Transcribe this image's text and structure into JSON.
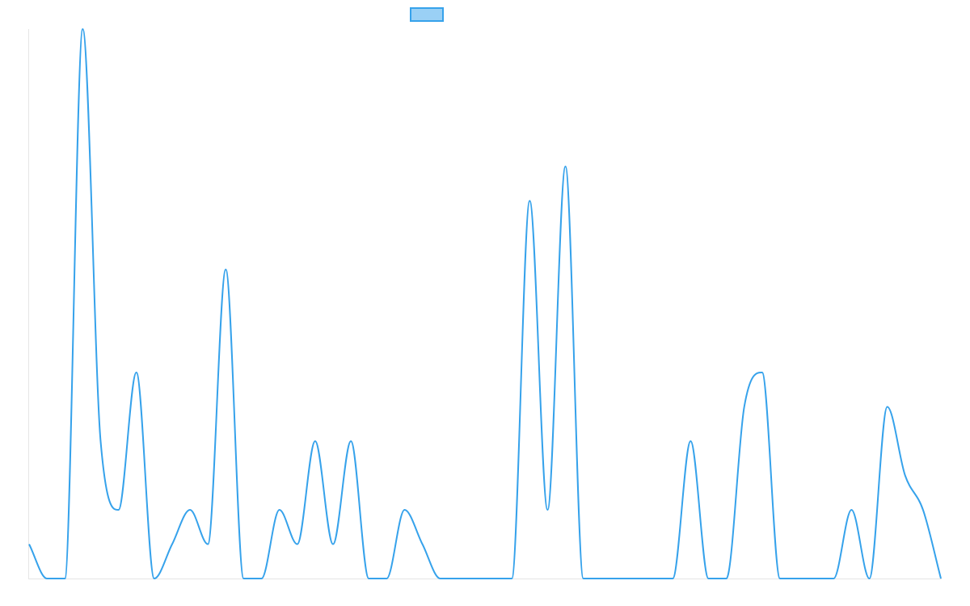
{
  "chart_data": {
    "type": "line",
    "title": "",
    "xlabel": "",
    "ylabel": "",
    "legend": {
      "position": "top-center",
      "entries": [
        {
          "label": ""
        }
      ]
    },
    "grid": false,
    "ylim": [
      0,
      16
    ],
    "x": [
      0,
      1,
      2,
      3,
      4,
      5,
      6,
      7,
      8,
      9,
      10,
      11,
      12,
      13,
      14,
      15,
      16,
      17,
      18,
      19,
      20,
      21,
      22,
      23,
      24,
      25,
      26,
      27,
      28,
      29,
      30,
      31,
      32,
      33,
      34,
      35,
      36,
      37,
      38,
      39,
      40,
      41,
      42,
      43,
      44,
      45,
      46,
      47,
      48,
      49,
      50,
      51
    ],
    "series": [
      {
        "name": "",
        "values": [
          1,
          0,
          0,
          16,
          4,
          2,
          6,
          0,
          1,
          2,
          1,
          9,
          0,
          0,
          2,
          1,
          4,
          1,
          4,
          0,
          0,
          2,
          1,
          0,
          0,
          0,
          0,
          0,
          11,
          2,
          12,
          0,
          0,
          0,
          0,
          0,
          0,
          4,
          0,
          0,
          5,
          6,
          0,
          0,
          0,
          0,
          2,
          0,
          5,
          3,
          2,
          0
        ],
        "color": "#36a2eb",
        "fill": "#9ad0f5"
      }
    ]
  }
}
